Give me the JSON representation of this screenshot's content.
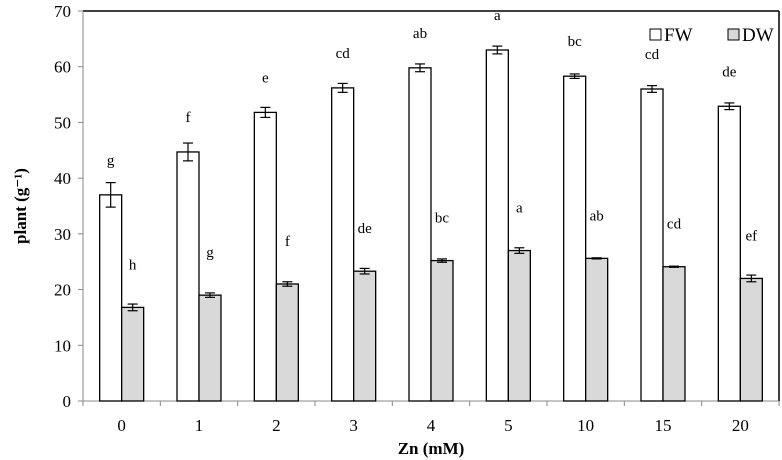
{
  "chart_data": {
    "type": "bar",
    "title": "",
    "xlabel": "Zn (mM)",
    "ylabel": "plant (g⁻¹)",
    "ylim": [
      0,
      70
    ],
    "yticks": [
      0,
      10,
      20,
      30,
      40,
      50,
      60,
      70
    ],
    "categories": [
      "0",
      "1",
      "2",
      "3",
      "4",
      "5",
      "10",
      "15",
      "20"
    ],
    "grid": false,
    "legend_position": "top-right",
    "series": [
      {
        "name": "FW",
        "color": "#ffffff",
        "values": [
          37.0,
          44.7,
          51.8,
          56.2,
          59.8,
          63.0,
          58.3,
          56.0,
          52.9
        ],
        "errors": [
          2.2,
          1.6,
          0.9,
          0.8,
          0.7,
          0.7,
          0.4,
          0.6,
          0.6
        ],
        "letters": [
          "g",
          "f",
          "e",
          "cd",
          "ab",
          "a",
          "bc",
          "cd",
          "de"
        ]
      },
      {
        "name": "DW",
        "color": "#d9d9d9",
        "values": [
          16.8,
          19.0,
          21.0,
          23.3,
          25.2,
          27.0,
          25.6,
          24.1,
          22.0
        ],
        "errors": [
          0.6,
          0.4,
          0.4,
          0.5,
          0.3,
          0.5,
          0.1,
          0.1,
          0.6
        ],
        "letters": [
          "h",
          "g",
          "f",
          "de",
          "bc",
          "a",
          "ab",
          "cd",
          "ef"
        ]
      }
    ]
  }
}
